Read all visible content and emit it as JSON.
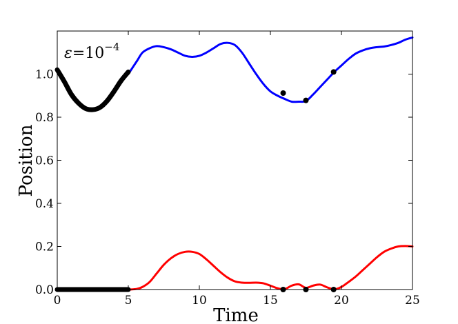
{
  "chart_data": {
    "type": "line",
    "title": "",
    "xlabel": "Time",
    "ylabel": "Position",
    "xlim": [
      0,
      25
    ],
    "ylim": [
      0,
      1.2
    ],
    "xticks": [
      "0",
      "5",
      "10",
      "15",
      "20",
      "25"
    ],
    "yticks": [
      "0.0",
      "0.2",
      "0.4",
      "0.6",
      "0.8",
      "1.0"
    ],
    "annotation": {
      "symbol": "ε",
      "equals": "=",
      "base": "10",
      "exponent": "−4"
    },
    "grid": false,
    "series": [
      {
        "color": "#0000ff",
        "x": [
          5.1,
          5.6,
          6.0,
          6.5,
          7.0,
          7.5,
          8.0,
          8.5,
          9.0,
          9.5,
          10.0,
          10.5,
          11.0,
          11.5,
          12.0,
          12.5,
          13.0,
          13.5,
          14.0,
          14.5,
          15.0,
          15.5,
          16.0,
          16.5,
          17.0,
          17.5,
          18.0,
          18.5,
          19.0,
          19.5,
          20.0,
          20.5,
          21.0,
          21.5,
          22.0,
          22.5,
          23.0,
          23.5,
          24.0,
          24.5,
          25.0
        ],
        "y": [
          1.01,
          1.06,
          1.1,
          1.12,
          1.13,
          1.125,
          1.115,
          1.1,
          1.085,
          1.08,
          1.085,
          1.1,
          1.12,
          1.14,
          1.145,
          1.135,
          1.1,
          1.05,
          1.0,
          0.955,
          0.92,
          0.9,
          0.885,
          0.872,
          0.872,
          0.875,
          0.905,
          0.94,
          0.975,
          1.01,
          1.04,
          1.07,
          1.095,
          1.11,
          1.12,
          1.125,
          1.128,
          1.135,
          1.145,
          1.16,
          1.17
        ]
      },
      {
        "color": "#000000",
        "x": [
          0.0,
          0.5,
          1.0,
          1.5,
          2.0,
          2.5,
          3.0,
          3.5,
          4.0,
          4.5,
          5.0
        ],
        "y": [
          1.02,
          0.965,
          0.905,
          0.865,
          0.84,
          0.835,
          0.845,
          0.875,
          0.92,
          0.97,
          1.01
        ]
      },
      {
        "color": "#ff0000",
        "x": [
          5.1,
          5.6,
          6.0,
          6.5,
          7.0,
          7.5,
          8.0,
          8.5,
          9.0,
          9.5,
          10.0,
          10.5,
          11.0,
          11.5,
          12.0,
          12.5,
          13.0,
          13.5,
          14.0,
          14.5,
          15.0,
          15.5,
          16.0,
          16.5,
          17.0,
          17.5,
          18.0,
          18.5,
          19.0,
          19.5,
          20.0,
          20.5,
          21.0,
          21.5,
          22.0,
          22.5,
          23.0,
          23.5,
          24.0,
          24.5,
          25.0
        ],
        "y": [
          0.0,
          0.003,
          0.012,
          0.035,
          0.075,
          0.115,
          0.145,
          0.165,
          0.175,
          0.175,
          0.165,
          0.14,
          0.11,
          0.08,
          0.055,
          0.038,
          0.032,
          0.031,
          0.032,
          0.029,
          0.018,
          0.006,
          0.002,
          0.018,
          0.024,
          0.008,
          0.018,
          0.023,
          0.01,
          0.001,
          0.012,
          0.035,
          0.06,
          0.09,
          0.12,
          0.15,
          0.175,
          0.19,
          0.2,
          0.202,
          0.2
        ]
      },
      {
        "color": "#000000",
        "x": [
          0.0,
          5.0
        ],
        "y": [
          0.0,
          0.0
        ]
      }
    ],
    "markers": [
      {
        "x": 15.9,
        "y": 0.912
      },
      {
        "x": 17.5,
        "y": 0.878
      },
      {
        "x": 19.45,
        "y": 1.01
      },
      {
        "x": 15.9,
        "y": 0.0
      },
      {
        "x": 17.5,
        "y": 0.0
      },
      {
        "x": 19.45,
        "y": 0.0
      }
    ]
  }
}
